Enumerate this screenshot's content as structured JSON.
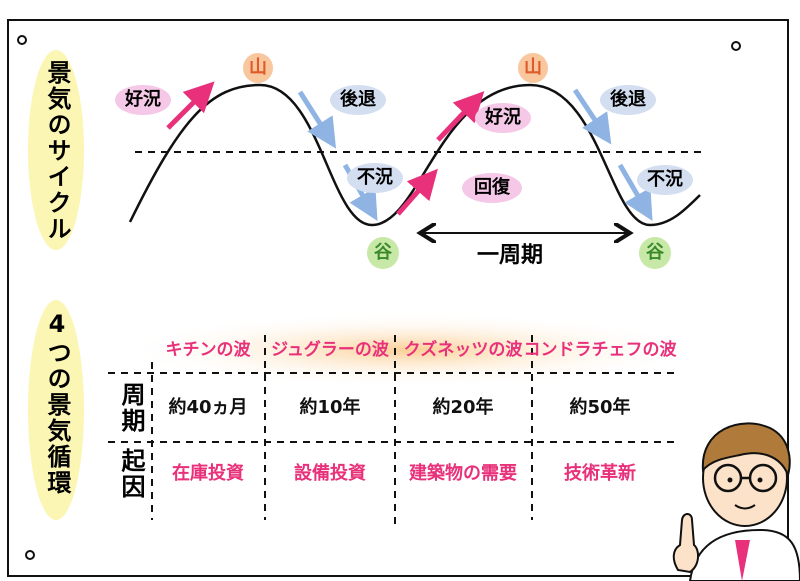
{
  "cycle": {
    "title": "景気のサイクル",
    "peaks": [
      "山",
      "山"
    ],
    "troughs": [
      "谷",
      "谷"
    ],
    "boom": [
      "好況",
      "好況"
    ],
    "recession": [
      "後退",
      "後退"
    ],
    "depression": [
      "不況",
      "不況"
    ],
    "recovery": "回復",
    "period": "一周期"
  },
  "waves": {
    "title": "4つの景気循環",
    "columns": [
      "キチンの波",
      "ジュグラーの波",
      "クズネッツの波",
      "コンドラチェフの波"
    ],
    "rows": [
      {
        "label": "周期",
        "cells": [
          "約40ヵ月",
          "約10年",
          "約20年",
          "約50年"
        ]
      },
      {
        "label": "起因",
        "cells": [
          "在庫投資",
          "設備投資",
          "建築物の需要",
          "技術革新"
        ]
      }
    ]
  }
}
